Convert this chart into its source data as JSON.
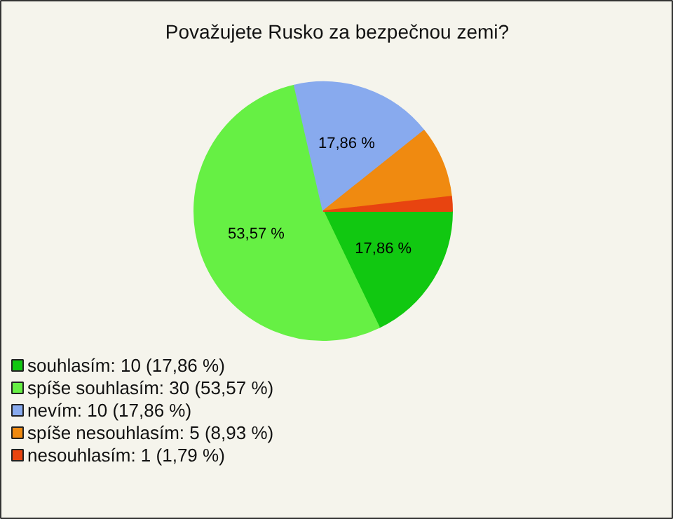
{
  "chart_data": {
    "type": "pie",
    "title": "Považujete Rusko za bezpečnou zemi?",
    "categories": [
      "souhlasím: 10 (17,86 %)",
      "spíše souhlasím: 30 (53,57 %)",
      "nevím: 10 (17,86 %)",
      "spíše nesouhlasím: 5 (8,93 %)",
      "nesouhlasím: 1 (1,79 %)"
    ],
    "values": [
      17.86,
      53.57,
      17.86,
      8.93,
      1.79
    ],
    "colors": [
      "#11c811",
      "#66f044",
      "#88aaee",
      "#f08a10",
      "#e84410"
    ],
    "value_labels": [
      "17,86 %",
      "53,57 %",
      "17,86 %",
      null,
      null
    ],
    "legend": "bottom left"
  }
}
